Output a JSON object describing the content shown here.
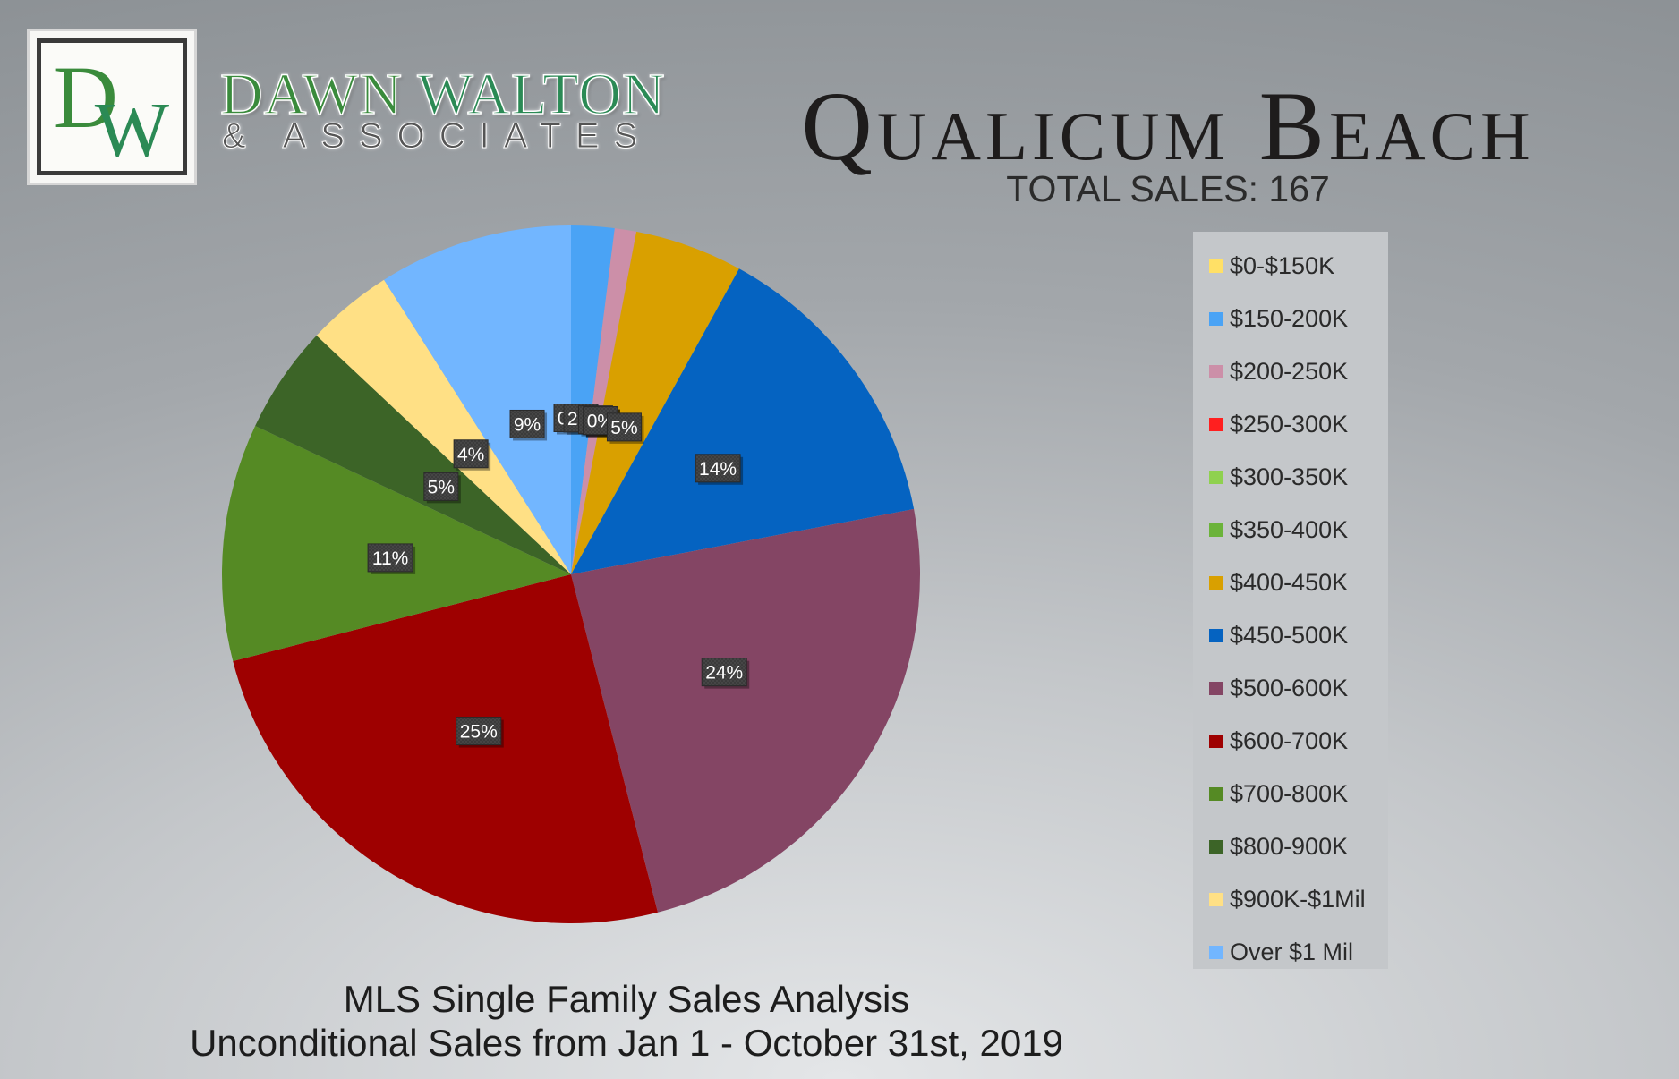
{
  "brand": {
    "monogram_d": "D",
    "monogram_w": "W",
    "name_first": "DAWN",
    "name_last": "WALTON",
    "subtitle": "& ASSOCIATES",
    "colors": {
      "green": "#3a8b3c",
      "teal": "#2b8a55"
    }
  },
  "title": "Qualicum Beach",
  "total_sales": "TOTAL SALES: 167",
  "footer": {
    "line1": "MLS Single Family Sales Analysis",
    "line2": "Unconditional Sales from Jan 1 - October 31st, 2019"
  },
  "chart_data": {
    "type": "pie",
    "title": "",
    "legend_position": "right",
    "start_angle_deg": 0,
    "direction": "clockwise",
    "slices": [
      {
        "label": "$0-$150K",
        "value": 0,
        "display": "0%",
        "color": "#ffe066"
      },
      {
        "label": "$150-200K",
        "value": 2,
        "display": "2%",
        "color": "#4aa3f5"
      },
      {
        "label": "$200-250K",
        "value": 1,
        "display": "1%",
        "color": "#cc8fa8"
      },
      {
        "label": "$250-300K",
        "value": 0,
        "display": "0%",
        "color": "#ff1f1f"
      },
      {
        "label": "$300-350K",
        "value": 0,
        "display": "0%",
        "color": "#8fd14f"
      },
      {
        "label": "$350-400K",
        "value": 0,
        "display": "0%",
        "color": "#6bb33a"
      },
      {
        "label": "$400-450K",
        "value": 5,
        "display": "5%",
        "color": "#d9a000"
      },
      {
        "label": "$450-500K",
        "value": 14,
        "display": "14%",
        "color": "#0563c1"
      },
      {
        "label": "$500-600K",
        "value": 24,
        "display": "24%",
        "color": "#844564"
      },
      {
        "label": "$600-700K",
        "value": 25,
        "display": "25%",
        "color": "#9e0000"
      },
      {
        "label": "$700-800K",
        "value": 11,
        "display": "11%",
        "color": "#558a24"
      },
      {
        "label": "$800-900K",
        "value": 5,
        "display": "5%",
        "color": "#3c6427"
      },
      {
        "label": "$900K-$1Mil",
        "value": 4,
        "display": "4%",
        "color": "#ffe085"
      },
      {
        "label": "Over $1 Mil",
        "value": 9,
        "display": "9%",
        "color": "#72b6ff"
      }
    ]
  }
}
